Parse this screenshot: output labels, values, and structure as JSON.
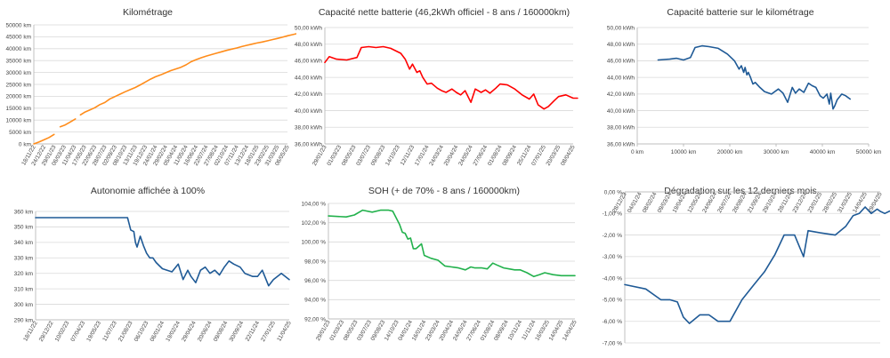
{
  "chart_data": [
    {
      "id": "km",
      "type": "line",
      "title": "Kilométrage",
      "color": "#ff8c1a",
      "x_type": "category",
      "categories": [
        "18/11/22",
        "24/12/22",
        "29/01/23",
        "06/03/23",
        "11/04/23",
        "17/05/23",
        "22/06/23",
        "28/07/23",
        "02/09/23",
        "08/10/23",
        "13/11/23",
        "19/12/23",
        "24/01/24",
        "29/02/24",
        "05/04/24",
        "11/05/24",
        "16/06/24",
        "22/07/24",
        "27/08/24",
        "02/10/24",
        "07/11/24",
        "13/12/24",
        "18/01/25",
        "23/02/25",
        "31/03/25",
        "06/05/25"
      ],
      "ylim": [
        0,
        50000
      ],
      "yticks": [
        0,
        5000,
        10000,
        15000,
        20000,
        25000,
        30000,
        35000,
        40000,
        45000,
        50000
      ],
      "ytick_labels": [
        "0 km",
        "5000 km",
        "10000 km",
        "15000 km",
        "20000 km",
        "25000 km",
        "30000 km",
        "35000 km",
        "40000 km",
        "45000 km",
        "50000 km"
      ],
      "x_label_rotation": -60,
      "series": [
        {
          "x": [
            0.0,
            0.5,
            1.0,
            1.5,
            2.0
          ],
          "y": [
            0,
            800,
            1700,
            2700,
            4000
          ]
        },
        {
          "x": [
            2.6,
            3.1,
            3.6,
            4.1
          ],
          "y": [
            7200,
            8000,
            9200,
            10500
          ]
        },
        {
          "x": [
            4.6,
            5.0,
            5.5,
            6.0,
            6.5,
            7.0,
            7.5,
            8.0,
            8.5,
            9.0,
            9.5,
            10.0,
            10.5,
            11.0,
            11.5,
            12.0,
            12.5,
            13.0,
            13.5,
            14.0,
            14.5,
            15.0,
            15.5,
            16.0,
            16.5,
            17.0,
            17.5,
            18.0,
            18.5,
            19.0,
            19.5,
            20.0,
            20.5,
            21.0,
            21.5,
            22.0,
            22.5,
            23.0,
            23.5,
            24.0,
            24.5,
            25.0,
            25.5,
            26.0
          ],
          "y": [
            12200,
            13300,
            14200,
            15200,
            16500,
            17400,
            18900,
            19900,
            20900,
            21900,
            22800,
            23700,
            24800,
            26000,
            27200,
            28200,
            29000,
            29900,
            30800,
            31500,
            32200,
            33200,
            34500,
            35400,
            36200,
            36900,
            37500,
            38100,
            38700,
            39300,
            39800,
            40300,
            40900,
            41400,
            41900,
            42400,
            42800,
            43300,
            43800,
            44300,
            44800,
            45400,
            45900,
            46400
          ]
        }
      ]
    },
    {
      "id": "cap",
      "type": "line",
      "title": "Capacité nette batterie (46,2kWh officiel - 8 ans / 160000km)",
      "color": "#ff0000",
      "x_type": "category",
      "categories": [
        "29/01/23",
        "01/03/23",
        "08/05/23",
        "03/07/23",
        "09/08/23",
        "14/10/23",
        "12/11/23",
        "17/01/24",
        "24/03/24",
        "20/04/24",
        "24/05/24",
        "27/06/24",
        "01/08/24",
        "08/09/24",
        "25/11/24",
        "07/01/25",
        "20/03/25",
        "08/04/25"
      ],
      "ylim": [
        36,
        50
      ],
      "yticks": [
        36,
        38,
        40,
        42,
        44,
        46,
        48,
        50
      ],
      "ytick_labels": [
        "36,00 kWh",
        "38,00 kWh",
        "40,00 kWh",
        "42,00 kWh",
        "44,00 kWh",
        "46,00 kWh",
        "48,00 kWh",
        "50,00 kWh"
      ],
      "x_label_rotation": -60,
      "series": [
        {
          "x": [
            0.0,
            0.3,
            0.8,
            1.5,
            2.2,
            2.5,
            3.0,
            3.5,
            4.0,
            4.5,
            5.2,
            5.5,
            5.8,
            6.0,
            6.3,
            6.5,
            6.7,
            7.0,
            7.3,
            7.7,
            8.0,
            8.3,
            8.7,
            9.0,
            9.3,
            9.6,
            10.0,
            10.3,
            10.7,
            11.0,
            11.3,
            11.7,
            12.0,
            12.5,
            13.0,
            13.5,
            14.0,
            14.3,
            14.6,
            15.0,
            15.3,
            15.7,
            16.0,
            16.5,
            17.0,
            17.3
          ],
          "y": [
            45.8,
            46.5,
            46.2,
            46.1,
            46.4,
            47.6,
            47.7,
            47.6,
            47.7,
            47.5,
            46.9,
            46.2,
            45.0,
            45.6,
            44.6,
            44.8,
            44.0,
            43.2,
            43.3,
            42.7,
            42.4,
            42.2,
            42.6,
            42.2,
            41.9,
            42.4,
            41.0,
            42.6,
            42.2,
            42.5,
            42.1,
            42.7,
            43.2,
            43.1,
            42.6,
            41.9,
            41.4,
            42.0,
            40.7,
            40.2,
            40.5,
            41.2,
            41.7,
            41.9,
            41.5,
            41.5
          ]
        }
      ]
    },
    {
      "id": "capkm",
      "type": "line",
      "title": "Capacité batterie sur le kilométrage",
      "color": "#1f5a96",
      "x_type": "numeric",
      "xlim": [
        0,
        50000
      ],
      "xticks": [
        0,
        10000,
        20000,
        30000,
        40000,
        50000
      ],
      "xtick_labels": [
        "0 km",
        "10000 km",
        "20000 km",
        "30000 km",
        "40000 km",
        "50000 km"
      ],
      "ylim": [
        36,
        50
      ],
      "yticks": [
        36,
        38,
        40,
        42,
        44,
        46,
        48,
        50
      ],
      "ytick_labels": [
        "36,00 kWh",
        "38,00 kWh",
        "40,00 kWh",
        "42,00 kWh",
        "44,00 kWh",
        "46,00 kWh",
        "48,00 kWh",
        "50,00 kWh"
      ],
      "x_label_rotation": 0,
      "series": [
        {
          "x": [
            4500,
            7000,
            8500,
            10000,
            11500,
            12500,
            14000,
            15500,
            17500,
            19500,
            21000,
            22000,
            22500,
            23000,
            23300,
            23700,
            24000,
            24400,
            25000,
            25500,
            26500,
            27500,
            29000,
            30500,
            31500,
            32500,
            33500,
            34200,
            35000,
            36000,
            37000,
            37800,
            38600,
            39500,
            40200,
            41000,
            41500,
            41800,
            42300,
            42700,
            43200,
            44200,
            45000,
            46000
          ],
          "y": [
            46.1,
            46.2,
            46.3,
            46.1,
            46.4,
            47.6,
            47.8,
            47.7,
            47.5,
            46.8,
            46.0,
            45.0,
            45.4,
            44.6,
            45.2,
            44.3,
            44.6,
            44.1,
            43.2,
            43.4,
            42.8,
            42.3,
            42.0,
            42.6,
            42.1,
            41.0,
            42.8,
            42.1,
            42.6,
            42.2,
            43.3,
            43.0,
            42.8,
            41.8,
            41.5,
            42.0,
            40.8,
            42.1,
            40.2,
            40.6,
            41.3,
            42.0,
            41.8,
            41.4
          ]
        }
      ]
    },
    {
      "id": "auto",
      "type": "line",
      "title": "Autonomie affichée à 100%",
      "color": "#1f5a96",
      "x_type": "category",
      "categories": [
        "18/11/22",
        "29/12/22",
        "10/02/23",
        "07/04/23",
        "19/05/23",
        "11/07/23",
        "21/08/23",
        "06/10/23",
        "06/01/24",
        "19/02/24",
        "29/04/24",
        "20/06/24",
        "09/08/24",
        "30/09/24",
        "22/11/24",
        "27/01/25",
        "11/04/25"
      ],
      "ylim": [
        290,
        360
      ],
      "yticks": [
        290,
        300,
        310,
        320,
        330,
        340,
        350,
        360
      ],
      "ytick_labels": [
        "290 km",
        "300 km",
        "310 km",
        "320 km",
        "330 km",
        "340 km",
        "350 km",
        "360 km"
      ],
      "x_label_rotation": -60,
      "series": [
        {
          "x": [
            0.0,
            5.8,
            5.9,
            6.0,
            6.2,
            6.3,
            6.4,
            6.6,
            6.8,
            7.0,
            7.2,
            7.4,
            7.6,
            7.8,
            8.0,
            8.3,
            8.6,
            9.0,
            9.3,
            9.6,
            9.8,
            10.1,
            10.4,
            10.7,
            11.0,
            11.3,
            11.6,
            11.9,
            12.2,
            12.5,
            12.9,
            13.2,
            13.7,
            14.0,
            14.3,
            14.7,
            15.0,
            15.5,
            16.0
          ],
          "y": [
            356,
            356,
            352,
            348,
            347,
            340,
            337,
            344,
            338,
            333,
            330,
            330,
            327,
            325,
            323,
            322,
            321,
            326,
            316,
            322,
            318,
            314,
            322,
            324,
            320,
            322,
            319,
            324,
            328,
            326,
            324,
            320,
            318,
            318,
            322,
            312,
            316,
            320,
            316
          ]
        }
      ]
    },
    {
      "id": "soh",
      "type": "line",
      "title": "SOH (+ de 70% - 8 ans / 160000km)",
      "color": "#22b14c",
      "x_type": "category",
      "categories": [
        "29/01/23",
        "01/03/23",
        "08/05/23",
        "03/07/23",
        "09/08/23",
        "14/10/23",
        "04/01/24",
        "16/01/24",
        "23/03/24",
        "20/04/24",
        "24/05/24",
        "27/06/24",
        "01/08/24",
        "08/09/24",
        "10/11/24",
        "11/11/24",
        "16/03/25",
        "14/04/25",
        "14/04/25"
      ],
      "ylim": [
        92,
        104
      ],
      "yticks": [
        92,
        94,
        96,
        98,
        100,
        102,
        104
      ],
      "ytick_labels": [
        "92,00 %",
        "94,00 %",
        "96,00 %",
        "98,00 %",
        "100,00 %",
        "102,00 %",
        "104,00 %"
      ],
      "x_label_rotation": -60,
      "series": [
        {
          "x": [
            0.0,
            1.3,
            1.9,
            2.5,
            3.2,
            3.8,
            4.4,
            4.7,
            5.2,
            5.4,
            5.6,
            5.8,
            6.0,
            6.2,
            6.4,
            6.8,
            7.0,
            7.5,
            8.0,
            8.5,
            9.0,
            9.5,
            10.0,
            10.4,
            10.7,
            11.2,
            11.6,
            12.0,
            12.3,
            12.8,
            13.2,
            13.6,
            14.0,
            14.5,
            15.0,
            15.4,
            15.8,
            16.4,
            17.0,
            17.5,
            18.0
          ],
          "y": [
            102.7,
            102.6,
            102.8,
            103.3,
            103.1,
            103.3,
            103.3,
            103.2,
            101.8,
            101.0,
            100.9,
            100.3,
            100.4,
            99.3,
            99.3,
            99.8,
            98.6,
            98.3,
            98.1,
            97.5,
            97.4,
            97.3,
            97.1,
            97.4,
            97.3,
            97.3,
            97.2,
            97.8,
            97.6,
            97.3,
            97.2,
            97.1,
            97.1,
            96.8,
            96.4,
            96.6,
            96.8,
            96.6,
            96.5,
            96.5,
            96.5
          ]
        }
      ]
    },
    {
      "id": "deg",
      "type": "line",
      "title": "Dégradation sur les 12 derniers mois",
      "color": "#1f5a96",
      "x_type": "category",
      "categories": [
        "28/12/23",
        "04/01/24",
        "08/02/24",
        "09/03/24",
        "19/04/24",
        "12/05/24",
        "24/06/24",
        "26/07/24",
        "26/08/24",
        "21/09/24",
        "29/10/24",
        "28/11/24",
        "23/12/24",
        "23/01/25",
        "28/02/25",
        "31/03/25",
        "14/04/25",
        "29/04/25"
      ],
      "ylim": [
        -7,
        0
      ],
      "yticks": [
        -7,
        -6,
        -5,
        -4,
        -3,
        -2,
        -1,
        0
      ],
      "ytick_labels": [
        "-7,00 %",
        "-6,00 %",
        "-5,00 %",
        "-4,00 %",
        "-3,00 %",
        "-2,00 %",
        "-1,00 %",
        "0,00 %"
      ],
      "x_label_rotation": -60,
      "x_labels_at_top": true,
      "series": [
        {
          "x": [
            0.0,
            1.4,
            2.4,
            3.0,
            3.5,
            3.9,
            4.3,
            5.0,
            5.6,
            6.2,
            7.0,
            7.8,
            8.6,
            9.3,
            10.0,
            10.6,
            11.0,
            11.3,
            11.6,
            11.9,
            12.2,
            13.0,
            14.0,
            14.7,
            15.2,
            15.6,
            16.0,
            16.4,
            16.8,
            17.0,
            17.3,
            17.6,
            18.0
          ],
          "y": [
            -4.3,
            -4.5,
            -5.0,
            -5.0,
            -5.1,
            -5.8,
            -6.1,
            -5.7,
            -5.7,
            -6.0,
            -6.0,
            -5.0,
            -4.3,
            -3.7,
            -2.9,
            -2.0,
            -2.0,
            -2.0,
            -2.5,
            -3.0,
            -1.8,
            -1.9,
            -2.0,
            -1.6,
            -1.1,
            -1.0,
            -0.7,
            -1.0,
            -0.8,
            -0.9,
            -1.0,
            -0.9,
            -0.8
          ]
        }
      ]
    }
  ]
}
